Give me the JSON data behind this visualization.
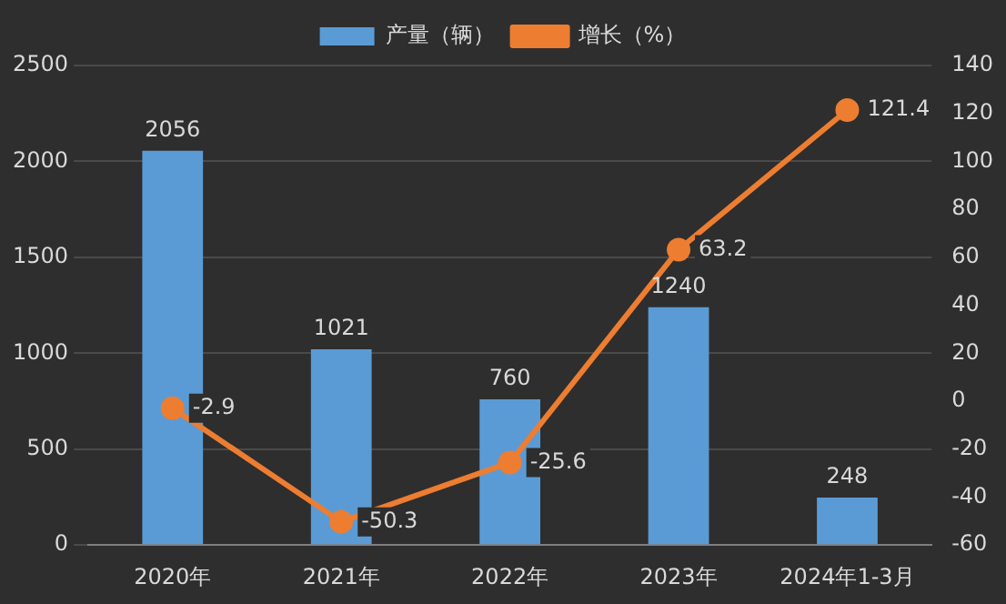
{
  "chart_data": {
    "type": "bar",
    "categories": [
      "2020年",
      "2021年",
      "2022年",
      "2023年",
      "2024年1-3月"
    ],
    "series": [
      {
        "name": "产量（辆）",
        "color": "#5b9bd5",
        "values": [
          2056,
          1021,
          760,
          1240,
          248
        ]
      },
      {
        "name": "增长（%）",
        "type": "line",
        "axis": "y2",
        "color": "#ed7d31",
        "values": [
          -2.9,
          -50.3,
          -25.6,
          63.2,
          121.4
        ]
      }
    ],
    "ylim": [
      0,
      2500
    ],
    "yticks": [
      0,
      500,
      1000,
      1500,
      2000,
      2500
    ],
    "y2lim": [
      -60,
      140
    ],
    "y2ticks": [
      -60,
      -40,
      -20,
      0,
      20,
      40,
      60,
      80,
      100,
      120,
      140
    ],
    "grid": "y",
    "legend": "top",
    "marker": "circle",
    "line_style": "solid",
    "data_labels": true
  }
}
